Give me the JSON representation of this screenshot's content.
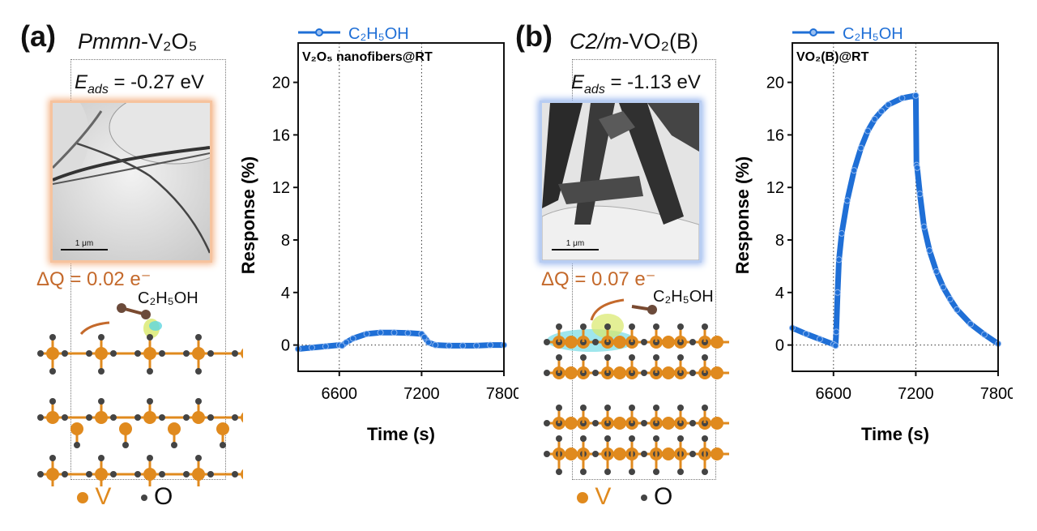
{
  "panel_a": {
    "label": "(a)",
    "phase_italic": "Pmmn",
    "phase_rest": "-V₂O₅",
    "eads_symbol": "E",
    "eads_sub": "ads",
    "eads_value": " = -0.27 eV",
    "tem_scale": "1 μm",
    "tem_border_color": "#f4b488",
    "charge_transfer": "ΔQ = 0.02 e⁻",
    "molecule": "C₂H₅OH",
    "atom_legend": {
      "v": "V",
      "o": "O"
    }
  },
  "panel_b": {
    "label": "(b)",
    "phase_italic": "C2/m",
    "phase_rest": "-VO₂(B)",
    "eads_symbol": "E",
    "eads_sub": "ads",
    "eads_value": " = -1.13 eV",
    "tem_scale": "1 μm",
    "tem_border_color": "#9cb8ee",
    "charge_transfer": "ΔQ = 0.07 e⁻",
    "molecule": "C₂H₅OH",
    "atom_legend": {
      "v": "V",
      "o": "O"
    }
  },
  "colors": {
    "series": "#1f6fd6",
    "vanadium": "#e08a1e",
    "oxygen": "#444444",
    "charge_text": "#c4692b"
  },
  "chart_data": [
    {
      "type": "scatter",
      "title": "V₂O₅ nanofibers@RT",
      "xlabel": "Time (s)",
      "ylabel": "Response (%)",
      "xlim": [
        6300,
        7800
      ],
      "ylim": [
        -2,
        23
      ],
      "xticks": [
        "6600",
        "7200",
        "7800"
      ],
      "yticks": [
        "0",
        "4",
        "8",
        "12",
        "16",
        "20"
      ],
      "reference_lines": {
        "x": [
          6600,
          7200
        ],
        "y": [
          0
        ]
      },
      "legend": "top",
      "series": [
        {
          "name": "C₂H₅OH",
          "x": [
            6300,
            6400,
            6500,
            6600,
            6620,
            6650,
            6700,
            6800,
            6900,
            7000,
            7100,
            7200,
            7220,
            7250,
            7300,
            7400,
            7500,
            7600,
            7700,
            7800
          ],
          "y": [
            -0.3,
            -0.2,
            -0.1,
            0,
            -0.05,
            0.2,
            0.5,
            0.85,
            0.95,
            0.95,
            0.92,
            0.85,
            0.6,
            0.2,
            0,
            -0.05,
            -0.05,
            -0.05,
            0,
            0
          ]
        }
      ]
    },
    {
      "type": "scatter",
      "title": "VO₂(B)@RT",
      "xlabel": "Time (s)",
      "ylabel": "Response (%)",
      "xlim": [
        6300,
        7800
      ],
      "ylim": [
        -2,
        23
      ],
      "xticks": [
        "6600",
        "7200",
        "7800"
      ],
      "yticks": [
        "0",
        "4",
        "8",
        "12",
        "16",
        "20"
      ],
      "reference_lines": {
        "x": [
          6600,
          7200
        ],
        "y": [
          0
        ]
      },
      "legend": "top",
      "series": [
        {
          "name": "C₂H₅OH",
          "x": [
            6300,
            6400,
            6500,
            6600,
            6615,
            6620,
            6630,
            6640,
            6660,
            6700,
            6750,
            6800,
            6850,
            6900,
            6950,
            7000,
            7100,
            7200,
            7205,
            7210,
            7230,
            7260,
            7300,
            7350,
            7400,
            7450,
            7500,
            7600,
            7700,
            7800
          ],
          "y": [
            1.3,
            0.85,
            0.45,
            0.05,
            -0.05,
            1,
            4,
            6.5,
            8.5,
            11,
            13.3,
            15,
            16.3,
            17.2,
            17.8,
            18.3,
            18.8,
            19.0,
            13.7,
            13.5,
            11.5,
            9,
            7.2,
            5.6,
            4.4,
            3.5,
            2.7,
            1.6,
            0.8,
            0.1
          ]
        }
      ]
    }
  ]
}
